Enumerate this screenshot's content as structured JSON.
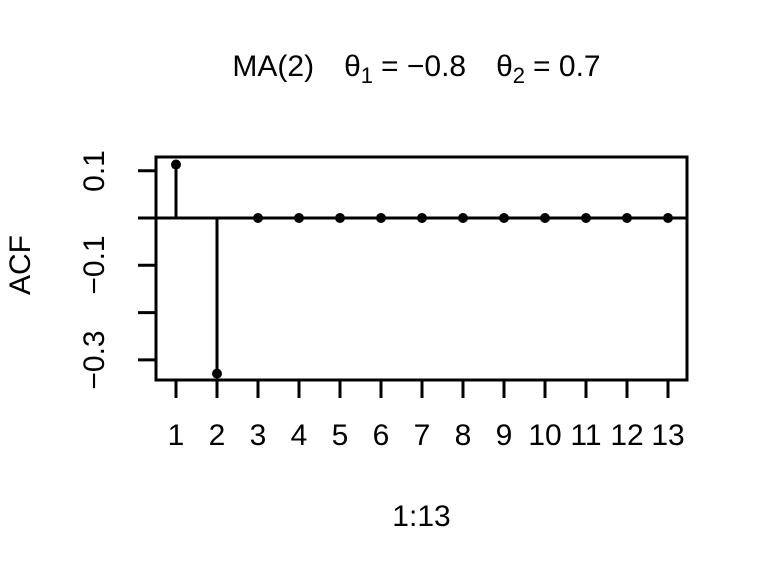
{
  "title": {
    "model": "MA(2)",
    "theta1_symbol": "θ",
    "theta1_subscript": "1",
    "theta1_equals": "= −0.8",
    "theta2_symbol": "θ",
    "theta2_subscript": "2",
    "theta2_equals": "= 0.7"
  },
  "chart_data": {
    "type": "scatter",
    "style": "stem plot (R type='h' vertical lines with filled-circle points and horizontal zero reference line)",
    "title": "MA(2)  θ1 = −0.8  θ2 = 0.7",
    "xlabel": "1:13",
    "ylabel": "ACF",
    "x": [
      1,
      2,
      3,
      4,
      5,
      6,
      7,
      8,
      9,
      10,
      11,
      12,
      13
    ],
    "y": [
      0.113,
      -0.329,
      0,
      0,
      0,
      0,
      0,
      0,
      0,
      0,
      0,
      0,
      0
    ],
    "x_tick_labels": [
      "1",
      "2",
      "3",
      "4",
      "5",
      "6",
      "7",
      "8",
      "9",
      "10",
      "11",
      "12",
      "13"
    ],
    "y_ticks": [
      {
        "value": 0.1,
        "label": "0.1"
      },
      {
        "value": 0.0,
        "label": ""
      },
      {
        "value": -0.1,
        "label": "−0.1"
      },
      {
        "value": -0.2,
        "label": ""
      },
      {
        "value": -0.3,
        "label": "−0.3"
      }
    ],
    "xlim": [
      0.52,
      13.48
    ],
    "ylim": [
      -0.343,
      0.129
    ],
    "zero_line": true,
    "grid": false,
    "legend": null,
    "marker": "filled-circle",
    "colors": {
      "foreground": "#000000",
      "background": "#ffffff"
    }
  }
}
